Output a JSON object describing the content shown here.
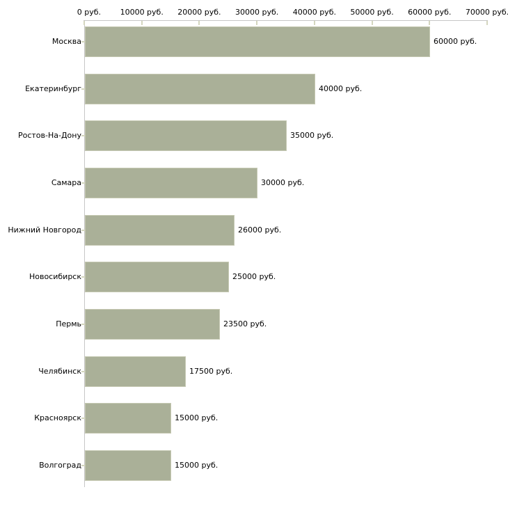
{
  "chart_data": {
    "type": "bar",
    "orientation": "horizontal",
    "title": "",
    "categories": [
      "Москва",
      "Екатеринбург",
      "Ростов-На-Дону",
      "Самара",
      "Нижний Новгород",
      "Новосибирск",
      "Пермь",
      "Челябинск",
      "Красноярск",
      "Волгоград"
    ],
    "values": [
      60000,
      40000,
      35000,
      30000,
      26000,
      25000,
      23500,
      17500,
      15000,
      15000
    ],
    "value_labels": [
      "60000 руб.",
      "40000 руб.",
      "35000 руб.",
      "30000 руб.",
      "26000 руб.",
      "25000 руб.",
      "23500 руб.",
      "17500 руб.",
      "15000 руб.",
      "15000 руб."
    ],
    "unit": "руб.",
    "x_axis": {
      "position": "top",
      "range": [
        0,
        70000
      ],
      "tick_values": [
        0,
        10000,
        20000,
        30000,
        40000,
        50000,
        60000,
        70000
      ],
      "tick_labels": [
        "0 руб.",
        "10000 руб.",
        "20000 руб.",
        "30000 руб.",
        "40000 руб.",
        "50000 руб.",
        "60000 руб.",
        "70000 руб."
      ]
    },
    "grid": false,
    "legend": false,
    "colors": {
      "bar_fill": "#aab098",
      "bar_border": "#c6c9b3",
      "axis_line": "#c6c6c6",
      "tick_mark": "#d4d6bf",
      "text": "#000000",
      "background": "#ffffff"
    }
  }
}
